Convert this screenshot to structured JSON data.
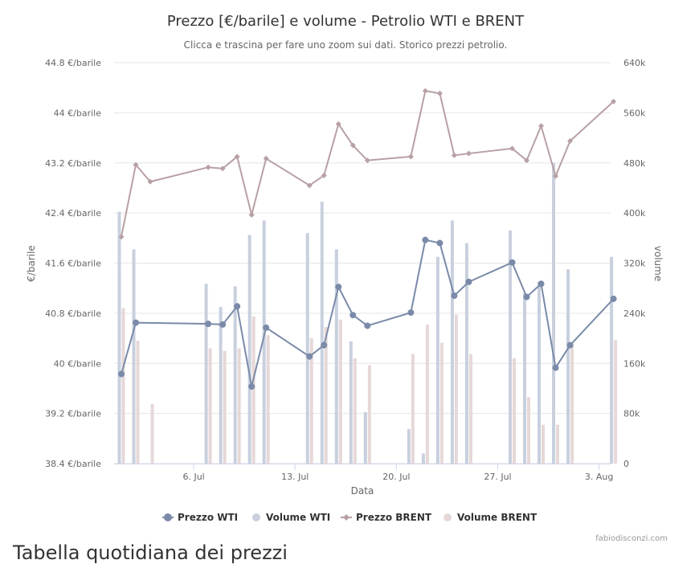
{
  "chart_data": {
    "type": "line",
    "title": "Prezzo [€/barile] e volume - Petrolio WTI e BRENT",
    "subtitle": "Clicca e trascina per fare uno zoom sui dati. Storico prezzi petrolio.",
    "xlabel": "Data",
    "ylabel_left": "€/barile",
    "ylabel_right": "volume",
    "x_ticks": [
      "6. Jul",
      "13. Jul",
      "20. Jul",
      "27. Jul",
      "3. Aug"
    ],
    "y_left_ticks": [
      "38.4 €/barile",
      "39.2 €/barile",
      "40 €/barile",
      "40.8 €/barile",
      "41.6 €/barile",
      "42.4 €/barile",
      "43.2 €/barile",
      "44 €/barile",
      "44.8 €/barile"
    ],
    "y_right_ticks": [
      "0",
      "80k",
      "160k",
      "240k",
      "320k",
      "400k",
      "480k",
      "560k",
      "640k"
    ],
    "ylim_left": [
      38.4,
      44.8
    ],
    "ylim_right": [
      0,
      640000
    ],
    "x_day_range": [
      0.5,
      34.8
    ],
    "legend_position": "bottom",
    "grid": true,
    "credits": "fabiodisconzi.com",
    "colors": {
      "wti_line": "#7a8aa8",
      "wti_volume": "#c8d0de",
      "brent_line": "#b8a0a4",
      "brent_volume": "#e6d8d8",
      "grid": "#e6e6e6"
    },
    "series": [
      {
        "name": "Prezzo WTI",
        "kind": "line",
        "axis": "left",
        "points": [
          {
            "day": 1,
            "value": 39.83
          },
          {
            "day": 2,
            "value": 40.65
          },
          {
            "day": 7,
            "value": 40.63
          },
          {
            "day": 8,
            "value": 40.62
          },
          {
            "day": 9,
            "value": 40.91
          },
          {
            "day": 10,
            "value": 39.63
          },
          {
            "day": 11,
            "value": 40.57
          },
          {
            "day": 14,
            "value": 40.11
          },
          {
            "day": 15,
            "value": 40.29
          },
          {
            "day": 16,
            "value": 41.22
          },
          {
            "day": 17,
            "value": 40.77
          },
          {
            "day": 18,
            "value": 40.6
          },
          {
            "day": 21,
            "value": 40.81
          },
          {
            "day": 22,
            "value": 41.97
          },
          {
            "day": 23,
            "value": 41.92
          },
          {
            "day": 24,
            "value": 41.08
          },
          {
            "day": 25,
            "value": 41.3
          },
          {
            "day": 28,
            "value": 41.61
          },
          {
            "day": 29,
            "value": 41.06
          },
          {
            "day": 30,
            "value": 41.27
          },
          {
            "day": 31,
            "value": 39.93
          },
          {
            "day": 32,
            "value": 40.29
          },
          {
            "day": 35,
            "value": 41.03
          }
        ]
      },
      {
        "name": "Volume WTI",
        "kind": "column",
        "axis": "right",
        "points": [
          {
            "day": 1,
            "value": 402000
          },
          {
            "day": 2,
            "value": 342000
          },
          {
            "day": 7,
            "value": 287000
          },
          {
            "day": 8,
            "value": 250000
          },
          {
            "day": 9,
            "value": 283000
          },
          {
            "day": 10,
            "value": 365000
          },
          {
            "day": 11,
            "value": 388000
          },
          {
            "day": 14,
            "value": 368000
          },
          {
            "day": 15,
            "value": 418000
          },
          {
            "day": 16,
            "value": 342000
          },
          {
            "day": 17,
            "value": 195000
          },
          {
            "day": 18,
            "value": 82000
          },
          {
            "day": 21,
            "value": 55000
          },
          {
            "day": 22,
            "value": 16000
          },
          {
            "day": 23,
            "value": 330000
          },
          {
            "day": 24,
            "value": 388000
          },
          {
            "day": 25,
            "value": 352000
          },
          {
            "day": 28,
            "value": 372000
          },
          {
            "day": 29,
            "value": 272000
          },
          {
            "day": 30,
            "value": 290000
          },
          {
            "day": 31,
            "value": 480000
          },
          {
            "day": 32,
            "value": 310000
          },
          {
            "day": 35,
            "value": 330000
          }
        ]
      },
      {
        "name": "Prezzo BRENT",
        "kind": "line",
        "axis": "left",
        "points": [
          {
            "day": 1,
            "value": 42.02
          },
          {
            "day": 2,
            "value": 43.17
          },
          {
            "day": 3,
            "value": 42.9
          },
          {
            "day": 7,
            "value": 43.13
          },
          {
            "day": 8,
            "value": 43.11
          },
          {
            "day": 9,
            "value": 43.3
          },
          {
            "day": 10,
            "value": 42.37
          },
          {
            "day": 11,
            "value": 43.27
          },
          {
            "day": 14,
            "value": 42.84
          },
          {
            "day": 15,
            "value": 43.0
          },
          {
            "day": 16,
            "value": 43.82
          },
          {
            "day": 17,
            "value": 43.48
          },
          {
            "day": 18,
            "value": 43.24
          },
          {
            "day": 21,
            "value": 43.3
          },
          {
            "day": 22,
            "value": 44.35
          },
          {
            "day": 23,
            "value": 44.31
          },
          {
            "day": 24,
            "value": 43.32
          },
          {
            "day": 25,
            "value": 43.35
          },
          {
            "day": 28,
            "value": 43.43
          },
          {
            "day": 29,
            "value": 43.24
          },
          {
            "day": 30,
            "value": 43.79
          },
          {
            "day": 31,
            "value": 42.99
          },
          {
            "day": 32,
            "value": 43.55
          },
          {
            "day": 35,
            "value": 44.18
          }
        ]
      },
      {
        "name": "Volume BRENT",
        "kind": "column",
        "axis": "right",
        "points": [
          {
            "day": 1,
            "value": 248000
          },
          {
            "day": 2,
            "value": 196000
          },
          {
            "day": 3,
            "value": 95000
          },
          {
            "day": 7,
            "value": 184000
          },
          {
            "day": 8,
            "value": 180000
          },
          {
            "day": 9,
            "value": 184000
          },
          {
            "day": 10,
            "value": 235000
          },
          {
            "day": 11,
            "value": 205000
          },
          {
            "day": 14,
            "value": 200000
          },
          {
            "day": 15,
            "value": 218000
          },
          {
            "day": 16,
            "value": 230000
          },
          {
            "day": 17,
            "value": 168000
          },
          {
            "day": 18,
            "value": 157000
          },
          {
            "day": 21,
            "value": 175000
          },
          {
            "day": 22,
            "value": 222000
          },
          {
            "day": 23,
            "value": 193000
          },
          {
            "day": 24,
            "value": 238000
          },
          {
            "day": 25,
            "value": 175000
          },
          {
            "day": 28,
            "value": 168000
          },
          {
            "day": 29,
            "value": 106000
          },
          {
            "day": 30,
            "value": 62000
          },
          {
            "day": 31,
            "value": 62000
          },
          {
            "day": 32,
            "value": 190000
          },
          {
            "day": 35,
            "value": 197000
          }
        ]
      }
    ]
  },
  "below_chart_text": "Tabella quotidiana dei prezzi"
}
